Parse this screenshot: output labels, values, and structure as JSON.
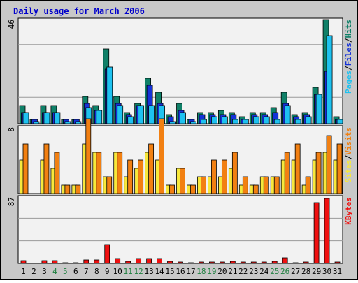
{
  "chart_data": {
    "type": "bar",
    "title": "Daily usage for March 2006",
    "categories": [
      "1",
      "2",
      "3",
      "4",
      "5",
      "6",
      "7",
      "8",
      "9",
      "10",
      "11",
      "12",
      "13",
      "14",
      "15",
      "16",
      "17",
      "18",
      "19",
      "20",
      "21",
      "22",
      "23",
      "24",
      "25",
      "26",
      "27",
      "28",
      "29",
      "30",
      "31"
    ],
    "weekend_days": [
      "4",
      "5",
      "11",
      "12",
      "18",
      "19",
      "25",
      "26"
    ],
    "panels": [
      {
        "id": "hits",
        "ymax": 46,
        "ymax_label": "46",
        "side_label": [
          "Pages",
          "/",
          "Files",
          "/",
          "Hits"
        ],
        "series": [
          {
            "name": "Hits",
            "color": "#0f8068",
            "values": [
              8,
              2,
              8,
              8,
              2,
              2,
              12,
              8,
              33,
              12,
              5,
              9,
              20,
              14,
              4,
              9,
              2,
              5,
              5,
              6,
              5,
              3,
              5,
              5,
              7,
              14,
              4,
              5,
              16,
              46,
              3
            ]
          },
          {
            "name": "Files",
            "color": "#1532d8",
            "values": [
              5,
              2,
              5,
              5,
              2,
              2,
              9,
              6,
              24,
              9,
              4,
              8,
              17,
              9,
              3,
              6,
              2,
              4,
              4,
              4,
              4,
              2,
              4,
              4,
              5,
              9,
              3,
              4,
              13,
              23,
              2
            ]
          },
          {
            "name": "Pages",
            "color": "#1ec2f0",
            "values": [
              5,
              1,
              5,
              5,
              1,
              1,
              7,
              6,
              25,
              8,
              3,
              8,
              8,
              8,
              1,
              5,
              1,
              2,
              3,
              3,
              2,
              2,
              3,
              3,
              2,
              8,
              2,
              3,
              13,
              39,
              2
            ]
          }
        ]
      },
      {
        "id": "visits",
        "ymax": 8,
        "ymax_label": "8",
        "side_label": [
          "Sites",
          "/",
          "Visits"
        ],
        "series": [
          {
            "name": "Sites",
            "color": "#f8e83c",
            "values": [
              4,
              0,
              4,
              3,
              1,
              1,
              6,
              5,
              2,
              5,
              2,
              3,
              5,
              4,
              1,
              3,
              1,
              2,
              2,
              2,
              3,
              1,
              1,
              2,
              2,
              4,
              4,
              1,
              4,
              5,
              4
            ]
          },
          {
            "name": "Visits",
            "color": "#f28012",
            "values": [
              6,
              0,
              6,
              5,
              1,
              1,
              9,
              5,
              2,
              5,
              4,
              4,
              6,
              9,
              1,
              3,
              1,
              2,
              4,
              4,
              5,
              2,
              1,
              2,
              2,
              5,
              6,
              2,
              5,
              7,
              6
            ]
          }
        ]
      },
      {
        "id": "kbytes",
        "ymax": 87,
        "ymax_label": "87",
        "side_label": [
          "KBytes"
        ],
        "series": [
          {
            "name": "KBytes",
            "color": "#f01010",
            "values": [
              4,
              0,
              4,
              4,
              1,
              1,
              5,
              5,
              25,
              6,
              3,
              6,
              6,
              6,
              3,
              2,
              1,
              2,
              2,
              2,
              3,
              2,
              2,
              2,
              3,
              7,
              1,
              2,
              80,
              85,
              2
            ]
          }
        ]
      }
    ],
    "colors": {
      "background": "#c8c8c8",
      "plot": "#f2f2f2",
      "title": "#0000cc",
      "weekday_label": "#000000",
      "weekend_label": "#1f8040",
      "gridline": "#9a9a9a"
    }
  }
}
